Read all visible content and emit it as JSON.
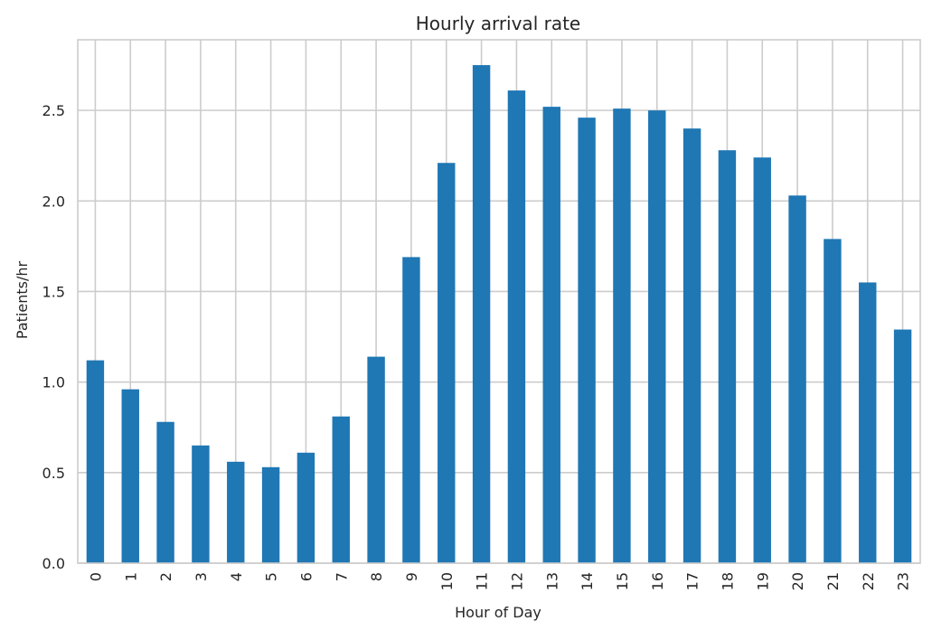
{
  "chart_data": {
    "type": "bar",
    "title": "Hourly arrival rate",
    "xlabel": "Hour of Day",
    "ylabel": "Patients/hr",
    "categories": [
      "0",
      "1",
      "2",
      "3",
      "4",
      "5",
      "6",
      "7",
      "8",
      "9",
      "10",
      "11",
      "12",
      "13",
      "14",
      "15",
      "16",
      "17",
      "18",
      "19",
      "20",
      "21",
      "22",
      "23"
    ],
    "values": [
      1.12,
      0.96,
      0.78,
      0.65,
      0.56,
      0.53,
      0.61,
      0.81,
      1.14,
      1.69,
      2.21,
      2.75,
      2.61,
      2.52,
      2.46,
      2.51,
      2.5,
      2.4,
      2.28,
      2.24,
      2.03,
      1.79,
      1.55,
      1.29
    ],
    "ylim": [
      0,
      2.89
    ],
    "yticks": [
      "0.0",
      "0.5",
      "1.0",
      "1.5",
      "2.0",
      "2.5"
    ],
    "grid": true,
    "legend": false,
    "bar_color": "#1f77b4"
  }
}
